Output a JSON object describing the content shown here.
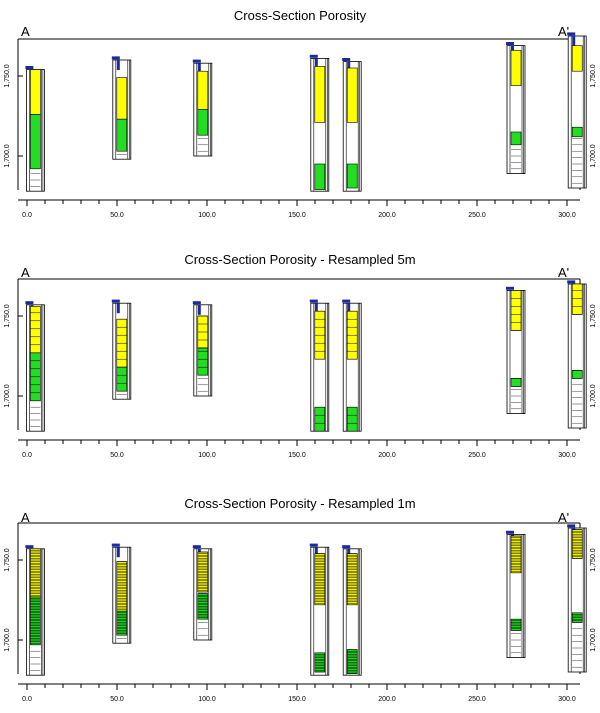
{
  "colors": {
    "yellow": "#ffff00",
    "green": "#22dd22",
    "blue": "#1a2aa0",
    "line": "#000000"
  },
  "section_labels": {
    "start": "A",
    "end": "A'"
  },
  "chart_data": [
    {
      "type": "cross-section",
      "title": "Cross-Section Porosity",
      "xlim": [
        0,
        300
      ],
      "ylim": [
        1680,
        1770
      ],
      "x_ticks": [
        "0.0",
        "50.0",
        "100.0",
        "150.0",
        "200.0",
        "250.0",
        "300.0"
      ],
      "x_tick_values": [
        0,
        50,
        100,
        150,
        200,
        250,
        300
      ],
      "y_ticks": [
        "1,700.0",
        "1,750.0"
      ],
      "y_tick_values": [
        1700,
        1750
      ],
      "resample_step": 0,
      "wells": [
        {
          "x": 3,
          "top": 1754,
          "bottom": 1678,
          "yellow": [
            1726,
            1754
          ],
          "green": [
            1692,
            1726
          ],
          "blue_top": 1755
        },
        {
          "x": 51,
          "top": 1760,
          "bottom": 1698,
          "yellow": [
            1723,
            1749
          ],
          "green": [
            1703,
            1723
          ],
          "blue_top": 1761
        },
        {
          "x": 96,
          "top": 1758,
          "bottom": 1700,
          "yellow": [
            1729,
            1753
          ],
          "green": [
            1713,
            1729
          ],
          "blue_top": 1759
        },
        {
          "x": 161,
          "top": 1761,
          "bottom": 1678,
          "yellow": [
            1721,
            1756
          ],
          "green": [
            1679,
            1695
          ],
          "blue_top": 1762
        },
        {
          "x": 179,
          "top": 1759,
          "bottom": 1678,
          "yellow": [
            1721,
            1755
          ],
          "green": [
            1680,
            1695
          ],
          "blue_top": 1760
        },
        {
          "x": 270,
          "top": 1769,
          "bottom": 1689,
          "yellow": [
            1744,
            1766
          ],
          "green": [
            1707,
            1715
          ],
          "blue_top": 1770
        },
        {
          "x": 304,
          "top": 1775,
          "bottom": 1680,
          "yellow": [
            1753,
            1769
          ],
          "green": [
            1712,
            1718
          ],
          "blue_top": 1776
        }
      ]
    },
    {
      "type": "cross-section",
      "title": "Cross-Section Porosity - Resampled 5m",
      "xlim": [
        0,
        300
      ],
      "ylim": [
        1680,
        1770
      ],
      "x_ticks": [
        "0.0",
        "50.0",
        "100.0",
        "150.0",
        "200.0",
        "250.0",
        "300.0"
      ],
      "x_tick_values": [
        0,
        50,
        100,
        150,
        200,
        250,
        300
      ],
      "y_ticks": [
        "1,700.0",
        "1,750.0"
      ],
      "y_tick_values": [
        1700,
        1750
      ],
      "resample_step": 5,
      "wells": [
        {
          "x": 3,
          "top": 1757,
          "bottom": 1678,
          "yellow": [
            1727,
            1756
          ],
          "green": [
            1697,
            1727
          ],
          "blue_top": 1758
        },
        {
          "x": 51,
          "top": 1758,
          "bottom": 1698,
          "yellow": [
            1718,
            1748
          ],
          "green": [
            1703,
            1718
          ],
          "blue_top": 1759
        },
        {
          "x": 96,
          "top": 1757,
          "bottom": 1700,
          "yellow": [
            1730,
            1750
          ],
          "green": [
            1713,
            1730
          ],
          "blue_top": 1758
        },
        {
          "x": 161,
          "top": 1758,
          "bottom": 1678,
          "yellow": [
            1723,
            1753
          ],
          "green": [
            1678,
            1693
          ],
          "blue_top": 1759
        },
        {
          "x": 179,
          "top": 1758,
          "bottom": 1678,
          "yellow": [
            1723,
            1753
          ],
          "green": [
            1678,
            1693
          ],
          "blue_top": 1759
        },
        {
          "x": 270,
          "top": 1766,
          "bottom": 1689,
          "yellow": [
            1741,
            1766
          ],
          "green": [
            1706,
            1711
          ],
          "blue_top": 1767
        },
        {
          "x": 304,
          "top": 1770,
          "bottom": 1680,
          "yellow": [
            1751,
            1770
          ],
          "green": [
            1711,
            1716
          ],
          "blue_top": 1771
        }
      ]
    },
    {
      "type": "cross-section",
      "title": "Cross-Section Porosity - Resampled 1m",
      "xlim": [
        0,
        300
      ],
      "ylim": [
        1680,
        1770
      ],
      "x_ticks": [
        "0.0",
        "50.0",
        "100.0",
        "150.0",
        "200.0",
        "250.0",
        "300.0"
      ],
      "x_tick_values": [
        0,
        50,
        100,
        150,
        200,
        250,
        300
      ],
      "y_ticks": [
        "1,700.0",
        "1,750.0"
      ],
      "y_tick_values": [
        1700,
        1750
      ],
      "resample_step": 1,
      "wells": [
        {
          "x": 3,
          "top": 1757,
          "bottom": 1678,
          "yellow": [
            1727,
            1757
          ],
          "green": [
            1697,
            1727
          ],
          "blue_top": 1758
        },
        {
          "x": 51,
          "top": 1758,
          "bottom": 1698,
          "yellow": [
            1718,
            1749
          ],
          "green": [
            1703,
            1718
          ],
          "blue_top": 1759
        },
        {
          "x": 96,
          "top": 1757,
          "bottom": 1700,
          "yellow": [
            1730,
            1755
          ],
          "green": [
            1713,
            1729
          ],
          "blue_top": 1758
        },
        {
          "x": 161,
          "top": 1758,
          "bottom": 1678,
          "yellow": [
            1722,
            1754
          ],
          "green": [
            1680,
            1692
          ],
          "blue_top": 1759
        },
        {
          "x": 179,
          "top": 1757,
          "bottom": 1678,
          "yellow": [
            1722,
            1754
          ],
          "green": [
            1679,
            1694
          ],
          "blue_top": 1758
        },
        {
          "x": 270,
          "top": 1766,
          "bottom": 1689,
          "yellow": [
            1742,
            1765
          ],
          "green": [
            1706,
            1713
          ],
          "blue_top": 1767
        },
        {
          "x": 304,
          "top": 1770,
          "bottom": 1680,
          "yellow": [
            1751,
            1769
          ],
          "green": [
            1711,
            1717
          ],
          "blue_top": 1771
        }
      ]
    }
  ]
}
